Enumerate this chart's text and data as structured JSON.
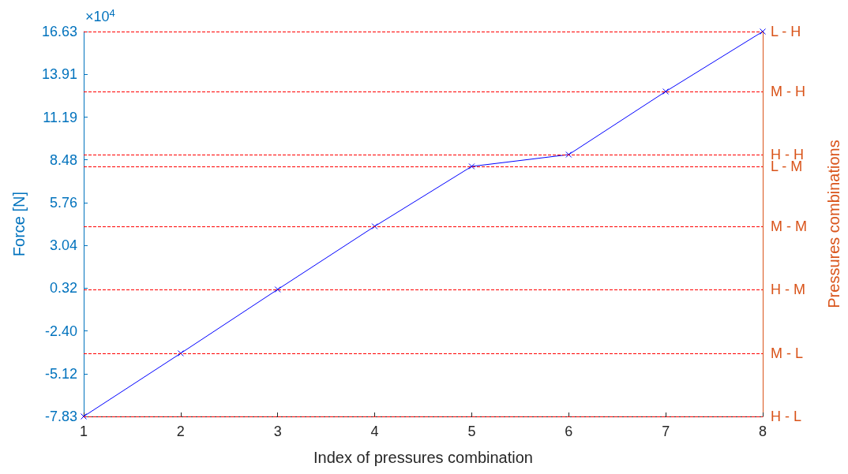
{
  "chart_data": {
    "type": "line",
    "xlabel": "Index of pressures combination",
    "ylabel": "Force [N]",
    "y2label": "Pressures combinations",
    "annotations": [
      "×10$^{4}$"
    ],
    "x": [
      1,
      2,
      3,
      4,
      5,
      6,
      7,
      8
    ],
    "series": [
      {
        "color": "#0000ff",
        "values": [
          -7.83,
          -3.82,
          0.24,
          4.25,
          8.06,
          8.81,
          12.82,
          16.63
        ]
      }
    ],
    "marker": "cross",
    "line_style": "solid",
    "grid": false,
    "xlim": [
      1,
      8
    ],
    "xticks": [
      1,
      2,
      3,
      4,
      5,
      6,
      7,
      8
    ],
    "ylim": [
      -7.83,
      16.63
    ],
    "yticks": [
      -7.83,
      -5.12,
      {
        "value": -2.4,
        "label": "-2.40"
      },
      0.32,
      3.04,
      5.76,
      8.48,
      11.19,
      13.91,
      16.63
    ],
    "ref_lines": [
      {
        "axis": "y",
        "value": -7.83,
        "label": "H - L",
        "color": "#ff0000",
        "line_style": "dashed"
      },
      {
        "axis": "y",
        "value": -3.82,
        "label": "M - L",
        "color": "#ff0000",
        "line_style": "dashed"
      },
      {
        "axis": "y",
        "value": 0.24,
        "label": "H - M",
        "color": "#ff0000",
        "line_style": "dashed"
      },
      {
        "axis": "y",
        "value": 4.25,
        "label": "M - M",
        "color": "#ff0000",
        "line_style": "dashed"
      },
      {
        "axis": "y",
        "value": 8.06,
        "label": "L - M",
        "color": "#ff0000",
        "line_style": "dashed"
      },
      {
        "axis": "y",
        "value": 8.81,
        "label": "H - H",
        "color": "#ff0000",
        "line_style": "dashed"
      },
      {
        "axis": "y",
        "value": 12.82,
        "label": "M - H",
        "color": "#ff0000",
        "line_style": "dashed"
      },
      {
        "axis": "y",
        "value": 16.63,
        "label": "L - H",
        "color": "#ff0000",
        "line_style": "dashed"
      }
    ]
  }
}
